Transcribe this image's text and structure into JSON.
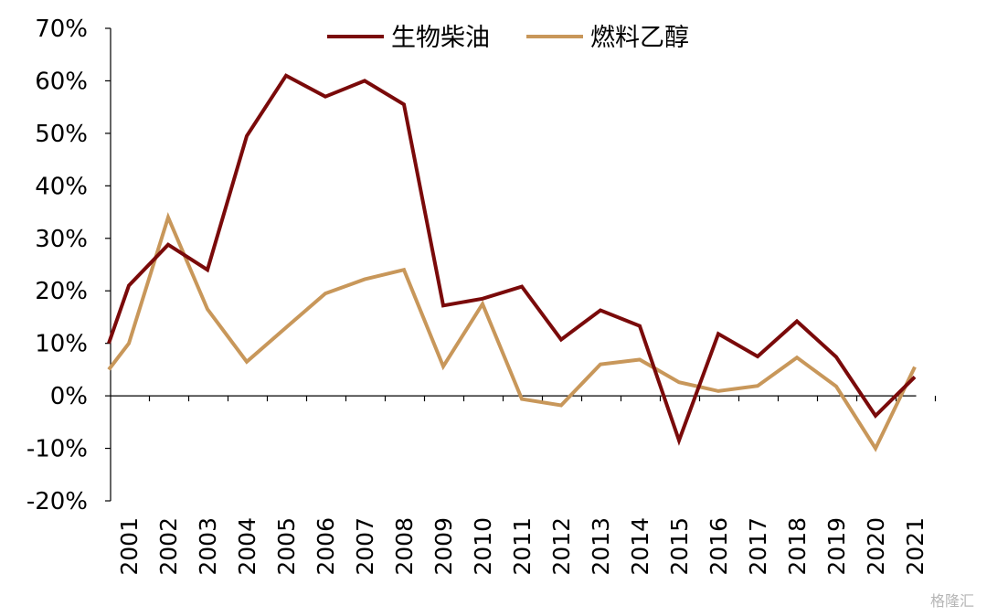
{
  "chart_data": {
    "type": "line",
    "title": "",
    "xlabel": "",
    "ylabel": "",
    "ylim": [
      -20,
      70
    ],
    "y_ticks": [
      70,
      60,
      50,
      40,
      30,
      20,
      10,
      0,
      -10,
      -20
    ],
    "y_tick_labels": [
      "70%",
      "60%",
      "50%",
      "40%",
      "30%",
      "20%",
      "10%",
      "0%",
      "-10%",
      "-20%"
    ],
    "x": [
      "2001",
      "2002",
      "2003",
      "2004",
      "2005",
      "2006",
      "2007",
      "2008",
      "2009",
      "2010",
      "2011",
      "2012",
      "2013",
      "2014",
      "2015",
      "2016",
      "2017",
      "2018",
      "2019",
      "2020",
      "2021"
    ],
    "series": [
      {
        "name": "生物柴油",
        "color": "#7a0a0a",
        "values": [
          21,
          28.8,
          24,
          49.5,
          61,
          57,
          60,
          55.5,
          17.2,
          18.5,
          20.8,
          10.7,
          16.3,
          13.3,
          -8.5,
          11.8,
          7.5,
          14.2,
          7.4,
          -3.8,
          3.6
        ]
      },
      {
        "name": "燃料乙醇",
        "color": "#c8975a",
        "values": [
          10,
          34,
          16.5,
          6.5,
          13,
          19.5,
          22.2,
          24,
          5.6,
          17.5,
          -0.6,
          -1.8,
          6,
          6.9,
          2.6,
          0.9,
          1.9,
          7.3,
          1.8,
          -10,
          5.5
        ]
      }
    ],
    "legend_position": "top-center",
    "grid": false
  },
  "watermark": "格隆汇"
}
